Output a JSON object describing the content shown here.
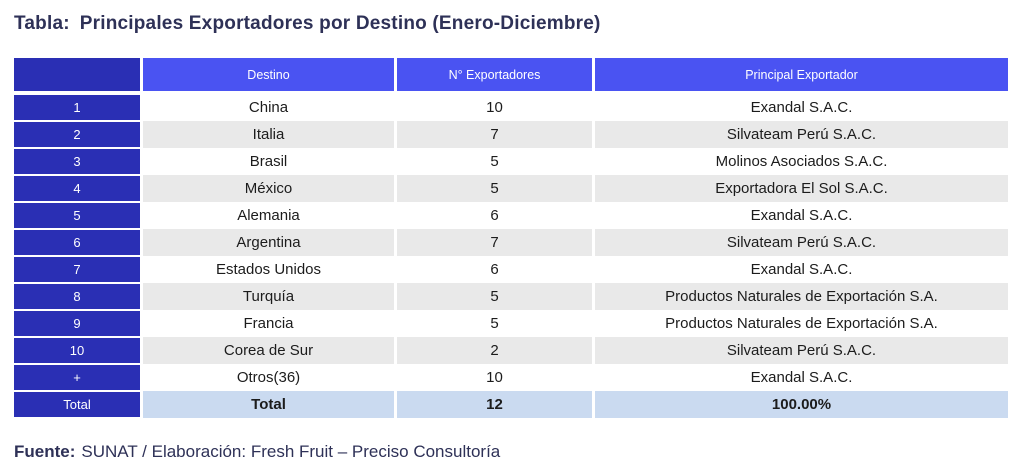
{
  "title": {
    "label": "Tabla:",
    "text": "Principales Exportadores por Destino (Enero-Diciembre)"
  },
  "table": {
    "headers": [
      "Destino",
      "N° Exportadores",
      "Principal Exportador"
    ],
    "rows": [
      {
        "rank": "1",
        "destino": "China",
        "exportadores": "10",
        "principal": "Exandal S.A.C."
      },
      {
        "rank": "2",
        "destino": "Italia",
        "exportadores": "7",
        "principal": "Silvateam Perú S.A.C."
      },
      {
        "rank": "3",
        "destino": "Brasil",
        "exportadores": "5",
        "principal": "Molinos Asociados S.A.C."
      },
      {
        "rank": "4",
        "destino": "México",
        "exportadores": "5",
        "principal": "Exportadora El Sol S.A.C."
      },
      {
        "rank": "5",
        "destino": "Alemania",
        "exportadores": "6",
        "principal": "Exandal S.A.C."
      },
      {
        "rank": "6",
        "destino": "Argentina",
        "exportadores": "7",
        "principal": "Silvateam Perú S.A.C."
      },
      {
        "rank": "7",
        "destino": "Estados Unidos",
        "exportadores": "6",
        "principal": "Exandal S.A.C."
      },
      {
        "rank": "8",
        "destino": "Turquía",
        "exportadores": "5",
        "principal": "Productos Naturales de Exportación S.A."
      },
      {
        "rank": "9",
        "destino": "Francia",
        "exportadores": "5",
        "principal": "Productos Naturales de Exportación S.A."
      },
      {
        "rank": "10",
        "destino": "Corea de Sur",
        "exportadores": "2",
        "principal": "Silvateam Perú S.A.C."
      },
      {
        "rank": "+",
        "destino": "Otros(36)",
        "exportadores": "10",
        "principal": "Exandal S.A.C."
      }
    ],
    "total_row": {
      "rank": "Total",
      "destino": "Total",
      "exportadores": "12",
      "principal": "100.00%"
    }
  },
  "footer": {
    "label": "Fuente:",
    "text": "SUNAT / Elaboración: Fresh Fruit – Preciso Consultoría"
  },
  "colors": {
    "rank_column_blue": "#2a2fb4",
    "header_blue": "#4a53f2",
    "stripe_gray": "#e9e9e9",
    "total_row_blue": "#cadaf0",
    "title_navy": "#2e3157"
  },
  "chart_data": {
    "type": "table",
    "title": "Tabla: Principales Exportadores por Destino (Enero-Diciembre)",
    "columns": [
      "",
      "Destino",
      "N° Exportadores",
      "Principal Exportador"
    ],
    "rows": [
      [
        "1",
        "China",
        10,
        "Exandal S.A.C."
      ],
      [
        "2",
        "Italia",
        7,
        "Silvateam Perú S.A.C."
      ],
      [
        "3",
        "Brasil",
        5,
        "Molinos Asociados S.A.C."
      ],
      [
        "4",
        "México",
        5,
        "Exportadora El Sol S.A.C."
      ],
      [
        "5",
        "Alemania",
        6,
        "Exandal S.A.C."
      ],
      [
        "6",
        "Argentina",
        7,
        "Silvateam Perú S.A.C."
      ],
      [
        "7",
        "Estados Unidos",
        6,
        "Exandal S.A.C."
      ],
      [
        "8",
        "Turquía",
        5,
        "Productos Naturales de Exportación S.A."
      ],
      [
        "9",
        "Francia",
        5,
        "Productos Naturales de Exportación S.A."
      ],
      [
        "10",
        "Corea de Sur",
        2,
        "Silvateam Perú S.A.C."
      ],
      [
        "+",
        "Otros(36)",
        10,
        "Exandal S.A.C."
      ]
    ],
    "total_row": [
      "Total",
      "Total",
      12,
      "100.00%"
    ],
    "source": "Fuente: SUNAT / Elaboración: Fresh Fruit – Preciso Consultoría"
  }
}
